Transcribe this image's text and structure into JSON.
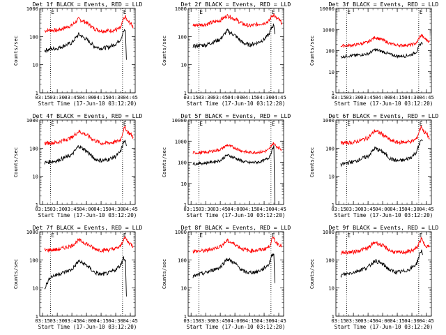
{
  "colors": {
    "black": "#000000",
    "red": "#ff0000",
    "background": "#ffffff"
  },
  "chart_data": [
    {
      "type": "line",
      "title": "Det 1f BLACK = Events, RED = LLD",
      "xlabel": "",
      "ylabel": "Counts/sec",
      "yscale": "log",
      "ylim": [
        1,
        1000
      ],
      "x_ticks": [
        "03:15",
        "03:30",
        "03:45",
        "04:00",
        "04:15",
        "04:30",
        "04:45"
      ],
      "y_ticks": [
        "1",
        "10",
        "100",
        "1000"
      ],
      "markers": [
        "03:23",
        "04:37"
      ],
      "marker_label": "E",
      "series": [
        {
          "color": "red",
          "x": [
            "03:17",
            "03:23",
            "03:30",
            "03:45",
            "03:52",
            "04:00",
            "04:08",
            "04:15",
            "04:23",
            "04:30",
            "04:35",
            "04:38",
            "04:40",
            "04:42",
            "04:45",
            "04:48"
          ],
          "values": [
            160,
            170,
            165,
            250,
            420,
            310,
            190,
            160,
            160,
            170,
            200,
            400,
            500,
            350,
            300,
            220
          ]
        },
        {
          "color": "black",
          "x": [
            "03:17",
            "03:23",
            "03:30",
            "03:45",
            "03:52",
            "04:00",
            "04:08",
            "04:15",
            "04:23",
            "04:30",
            "04:35",
            "04:38",
            "04:40",
            "04:41"
          ],
          "values": [
            32,
            36,
            38,
            60,
            120,
            80,
            45,
            38,
            42,
            55,
            80,
            150,
            160,
            15
          ]
        }
      ]
    },
    {
      "type": "line",
      "title": "Det 2f BLACK = Events, RED = LLD",
      "xlabel": "",
      "ylabel": "Counts/sec",
      "yscale": "log",
      "ylim": [
        1,
        1000
      ],
      "x_ticks": [
        "03:15",
        "03:30",
        "03:45",
        "04:00",
        "04:15",
        "04:30",
        "04:45"
      ],
      "y_ticks": [
        "1",
        "10",
        "100",
        "1000"
      ],
      "markers": [
        "03:23",
        "04:37"
      ],
      "marker_label": "E",
      "series": [
        {
          "color": "red",
          "x": [
            "03:17",
            "03:23",
            "03:30",
            "03:45",
            "03:52",
            "04:00",
            "04:08",
            "04:15",
            "04:23",
            "04:30",
            "04:35",
            "04:38",
            "04:40",
            "04:42",
            "04:45",
            "04:48"
          ],
          "values": [
            250,
            260,
            270,
            380,
            550,
            420,
            280,
            240,
            270,
            300,
            350,
            550,
            600,
            450,
            400,
            300
          ]
        },
        {
          "color": "black",
          "x": [
            "03:17",
            "03:23",
            "03:30",
            "03:45",
            "03:52",
            "04:00",
            "04:08",
            "04:15",
            "04:23",
            "04:30",
            "04:35",
            "04:38",
            "04:40",
            "04:41"
          ],
          "values": [
            45,
            48,
            50,
            80,
            160,
            110,
            60,
            50,
            60,
            80,
            120,
            220,
            250,
            120
          ]
        }
      ]
    },
    {
      "type": "line",
      "title": "Det 3f BLACK = Events, RED = LLD",
      "xlabel": "",
      "ylabel": "Counts/sec",
      "yscale": "log",
      "ylim": [
        1,
        10000
      ],
      "x_ticks": [
        "03:15",
        "03:30",
        "03:45",
        "04:00",
        "04:15",
        "04:30",
        "04:45"
      ],
      "y_ticks": [
        "1",
        "10",
        "100",
        "1000",
        "10000"
      ],
      "markers": [
        "03:23",
        "04:37"
      ],
      "marker_label": "E",
      "series": [
        {
          "color": "red",
          "x": [
            "03:17",
            "03:23",
            "03:30",
            "03:45",
            "03:52",
            "04:00",
            "04:08",
            "04:15",
            "04:23",
            "04:30",
            "04:35",
            "04:38",
            "04:40",
            "04:42",
            "04:45",
            "04:48"
          ],
          "values": [
            170,
            175,
            180,
            250,
            430,
            320,
            210,
            180,
            180,
            190,
            230,
            450,
            550,
            400,
            330,
            260
          ]
        },
        {
          "color": "black",
          "x": [
            "03:17",
            "03:23",
            "03:30",
            "03:45",
            "03:52",
            "04:00",
            "04:08",
            "04:15",
            "04:23",
            "04:30",
            "04:35",
            "04:38",
            "04:40",
            "04:41"
          ],
          "values": [
            50,
            55,
            58,
            70,
            110,
            90,
            65,
            55,
            55,
            65,
            90,
            180,
            250,
            200
          ]
        }
      ]
    },
    {
      "type": "line",
      "title": "Det 4f BLACK = Events, RED = LLD",
      "xlabel": "",
      "ylabel": "Counts/sec",
      "yscale": "log",
      "ylim": [
        1,
        1000
      ],
      "x_ticks": [
        "03:15",
        "03:30",
        "03:45",
        "04:00",
        "04:15",
        "04:30",
        "04:45"
      ],
      "y_ticks": [
        "1",
        "10",
        "100",
        "1000"
      ],
      "markers": [
        "03:23",
        "04:37"
      ],
      "marker_label": "E",
      "series": [
        {
          "color": "red",
          "x": [
            "03:17",
            "03:23",
            "03:30",
            "03:45",
            "03:52",
            "04:00",
            "04:08",
            "04:15",
            "04:23",
            "04:30",
            "04:35",
            "04:38",
            "04:40",
            "04:42",
            "04:45",
            "04:48"
          ],
          "values": [
            150,
            155,
            160,
            240,
            400,
            300,
            190,
            150,
            155,
            165,
            200,
            450,
            550,
            380,
            320,
            250
          ]
        },
        {
          "color": "black",
          "x": [
            "03:17",
            "03:23",
            "03:30",
            "03:45",
            "03:52",
            "04:00",
            "04:08",
            "04:15",
            "04:23",
            "04:30",
            "04:35",
            "04:38",
            "04:40",
            "04:41"
          ],
          "values": [
            30,
            33,
            36,
            58,
            120,
            80,
            42,
            36,
            40,
            52,
            75,
            160,
            180,
            120
          ]
        }
      ]
    },
    {
      "type": "line",
      "title": "Det 5f BLACK = Events, RED = LLD",
      "xlabel": "",
      "ylabel": "Counts/sec",
      "yscale": "log",
      "ylim": [
        1,
        10000
      ],
      "x_ticks": [
        "03:15",
        "03:30",
        "03:45",
        "04:00",
        "04:15",
        "04:30",
        "04:45"
      ],
      "y_ticks": [
        "1",
        "10",
        "100",
        "1000",
        "10000"
      ],
      "markers": [
        "03:23",
        "04:37"
      ],
      "marker_label": "E",
      "series": [
        {
          "color": "red",
          "x": [
            "03:17",
            "03:23",
            "03:30",
            "03:45",
            "03:52",
            "04:00",
            "04:08",
            "04:15",
            "04:23",
            "04:30",
            "04:35",
            "04:38",
            "04:40",
            "04:42",
            "04:45",
            "04:48"
          ],
          "values": [
            280,
            285,
            290,
            400,
            650,
            480,
            330,
            290,
            300,
            320,
            400,
            700,
            800,
            600,
            500,
            400
          ]
        },
        {
          "color": "black",
          "x": [
            "03:17",
            "03:23",
            "03:30",
            "03:45",
            "03:52",
            "04:00",
            "04:08",
            "04:15",
            "04:23",
            "04:30",
            "04:35",
            "04:38",
            "04:40",
            "04:41"
          ],
          "values": [
            85,
            88,
            92,
            120,
            220,
            160,
            110,
            95,
            100,
            120,
            170,
            350,
            650,
            1
          ]
        }
      ]
    },
    {
      "type": "line",
      "title": "Det 6f BLACK = Events, RED = LLD",
      "xlabel": "",
      "ylabel": "Counts/sec",
      "yscale": "log",
      "ylim": [
        1,
        1000
      ],
      "x_ticks": [
        "03:15",
        "03:30",
        "03:45",
        "04:00",
        "04:15",
        "04:30",
        "04:45"
      ],
      "y_ticks": [
        "1",
        "10",
        "100",
        "1000"
      ],
      "markers": [
        "03:23",
        "04:37"
      ],
      "marker_label": "E",
      "series": [
        {
          "color": "red",
          "x": [
            "03:17",
            "03:23",
            "03:30",
            "03:45",
            "03:52",
            "04:00",
            "04:08",
            "04:15",
            "04:23",
            "04:30",
            "04:35",
            "04:38",
            "04:40",
            "04:42",
            "04:45",
            "04:48"
          ],
          "values": [
            150,
            155,
            160,
            230,
            420,
            310,
            190,
            160,
            165,
            175,
            220,
            450,
            600,
            400,
            320,
            230
          ]
        },
        {
          "color": "black",
          "x": [
            "03:17",
            "03:23",
            "03:30",
            "03:45",
            "03:52",
            "04:00",
            "04:08",
            "04:15",
            "04:23",
            "04:30",
            "04:35",
            "04:38",
            "04:40",
            "04:41"
          ],
          "values": [
            25,
            30,
            33,
            52,
            100,
            75,
            42,
            35,
            38,
            50,
            75,
            150,
            200,
            180
          ]
        }
      ]
    },
    {
      "type": "line",
      "title": "Det 7f BLACK = Events, RED = LLD",
      "xlabel": "",
      "ylabel": "Counts/sec",
      "yscale": "log",
      "ylim": [
        1,
        1000
      ],
      "x_ticks": [
        "03:15",
        "03:30",
        "03:45",
        "04:00",
        "04:15",
        "04:30",
        "04:45"
      ],
      "y_ticks": [
        "1",
        "10",
        "100",
        "1000"
      ],
      "markers": [
        "03:23",
        "04:37"
      ],
      "marker_label": "E",
      "series": [
        {
          "color": "red",
          "x": [
            "03:17",
            "03:23",
            "03:30",
            "03:45",
            "03:52",
            "04:00",
            "04:08",
            "04:15",
            "04:23",
            "04:30",
            "04:35",
            "04:38",
            "04:40",
            "04:42",
            "04:45",
            "04:48"
          ],
          "values": [
            220,
            225,
            230,
            320,
            500,
            380,
            250,
            220,
            230,
            250,
            300,
            550,
            600,
            450,
            380,
            300
          ]
        },
        {
          "color": "black",
          "x": [
            "03:17",
            "03:23",
            "03:30",
            "03:45",
            "03:52",
            "04:00",
            "04:08",
            "04:15",
            "04:23",
            "04:30",
            "04:35",
            "04:38",
            "04:40",
            "04:41"
          ],
          "values": [
            10,
            25,
            30,
            45,
            90,
            65,
            36,
            30,
            34,
            45,
            65,
            120,
            100,
            5
          ]
        }
      ]
    },
    {
      "type": "line",
      "title": "Det 8f BLACK = Events, RED = LLD",
      "xlabel": "",
      "ylabel": "Counts/sec",
      "yscale": "log",
      "ylim": [
        1,
        1000
      ],
      "x_ticks": [
        "03:15",
        "03:30",
        "03:45",
        "04:00",
        "04:15",
        "04:30",
        "04:45"
      ],
      "y_ticks": [
        "1",
        "10",
        "100",
        "1000"
      ],
      "markers": [
        "03:23",
        "04:37"
      ],
      "marker_label": "E",
      "series": [
        {
          "color": "red",
          "x": [
            "03:17",
            "03:23",
            "03:30",
            "03:45",
            "03:52",
            "04:00",
            "04:08",
            "04:15",
            "04:23",
            "04:30",
            "04:35",
            "04:38",
            "04:40",
            "04:42",
            "04:45",
            "04:48"
          ],
          "values": [
            200,
            205,
            210,
            300,
            480,
            360,
            240,
            210,
            220,
            240,
            290,
            520,
            600,
            420,
            360,
            300
          ]
        },
        {
          "color": "black",
          "x": [
            "03:17",
            "03:23",
            "03:30",
            "03:45",
            "03:52",
            "04:00",
            "04:08",
            "04:15",
            "04:23",
            "04:30",
            "04:35",
            "04:38",
            "04:40",
            "04:41"
          ],
          "values": [
            25,
            30,
            35,
            55,
            110,
            75,
            40,
            35,
            38,
            50,
            70,
            150,
            160,
            15
          ]
        }
      ]
    },
    {
      "type": "line",
      "title": "Det 9f BLACK = Events, RED = LLD",
      "xlabel": "",
      "ylabel": "Counts/sec",
      "yscale": "log",
      "ylim": [
        1,
        1000
      ],
      "x_ticks": [
        "03:15",
        "03:30",
        "03:45",
        "04:00",
        "04:15",
        "04:30",
        "04:45"
      ],
      "y_ticks": [
        "1",
        "10",
        "100",
        "1000"
      ],
      "markers": [
        "03:23",
        "04:37"
      ],
      "marker_label": "E",
      "series": [
        {
          "color": "red",
          "x": [
            "03:17",
            "03:23",
            "03:30",
            "03:45",
            "03:52",
            "04:00",
            "04:08",
            "04:15",
            "04:23",
            "04:30",
            "04:35",
            "04:38",
            "04:40",
            "04:42",
            "04:45",
            "04:48"
          ],
          "values": [
            180,
            185,
            190,
            260,
            430,
            320,
            210,
            180,
            190,
            210,
            260,
            450,
            550,
            380,
            320,
            280
          ]
        },
        {
          "color": "black",
          "x": [
            "03:17",
            "03:23",
            "03:30",
            "03:45",
            "03:52",
            "04:00",
            "04:08",
            "04:15",
            "04:23",
            "04:30",
            "04:35",
            "04:38",
            "04:40",
            "04:41"
          ],
          "values": [
            28,
            32,
            36,
            55,
            95,
            70,
            42,
            36,
            40,
            52,
            75,
            160,
            230,
            150
          ]
        }
      ]
    }
  ],
  "start_time_label": "Start Time (17-Jun-10 03:12:20)"
}
